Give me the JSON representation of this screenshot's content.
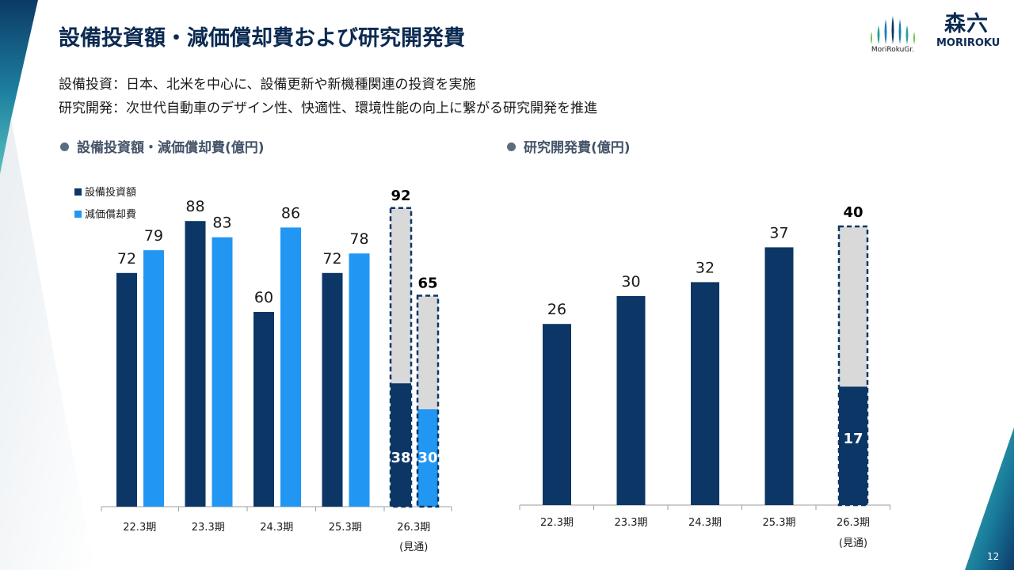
{
  "slide": {
    "title": "設備投資額・減価償却費および研究開発費",
    "line1": "設備投資：日本、北米を中心に、設備更新や新機種関連の投資を実施",
    "line2": "研究開発：次世代自動車のデザイン性、快適性、環境性能の向上に繋がる研究開発を推進",
    "page_number": "12"
  },
  "logos": {
    "group_text": "MoriRokuGr.",
    "brand_kanji": "森六",
    "brand_latin": "MORIROKU"
  },
  "colors": {
    "navy": "#0b3665",
    "blue": "#2196f3",
    "forecast_fill": "#d9d9d9",
    "axis": "#9e9e9e"
  },
  "chart_data": [
    {
      "type": "bar",
      "title": "設備投資額・減価償却費(億円)",
      "categories": [
        "22.3期",
        "23.3期",
        "24.3期",
        "25.3期",
        "26.3期"
      ],
      "category_note": "(見通)",
      "series": [
        {
          "name": "設備投資額",
          "values": [
            72,
            88,
            60,
            72,
            92
          ],
          "forecast_actual": 38
        },
        {
          "name": "減価償却費",
          "values": [
            79,
            83,
            86,
            78,
            65
          ],
          "forecast_actual": 30
        }
      ],
      "ylim": [
        0,
        100
      ],
      "legend": "top-left"
    },
    {
      "type": "bar",
      "title": "研究開発費(億円)",
      "categories": [
        "22.3期",
        "23.3期",
        "24.3期",
        "25.3期",
        "26.3期"
      ],
      "category_note": "(見通)",
      "series": [
        {
          "name": "研究開発費",
          "values": [
            26,
            30,
            32,
            37,
            40
          ],
          "forecast_actual": 17
        }
      ],
      "ylim": [
        0,
        50
      ]
    }
  ]
}
